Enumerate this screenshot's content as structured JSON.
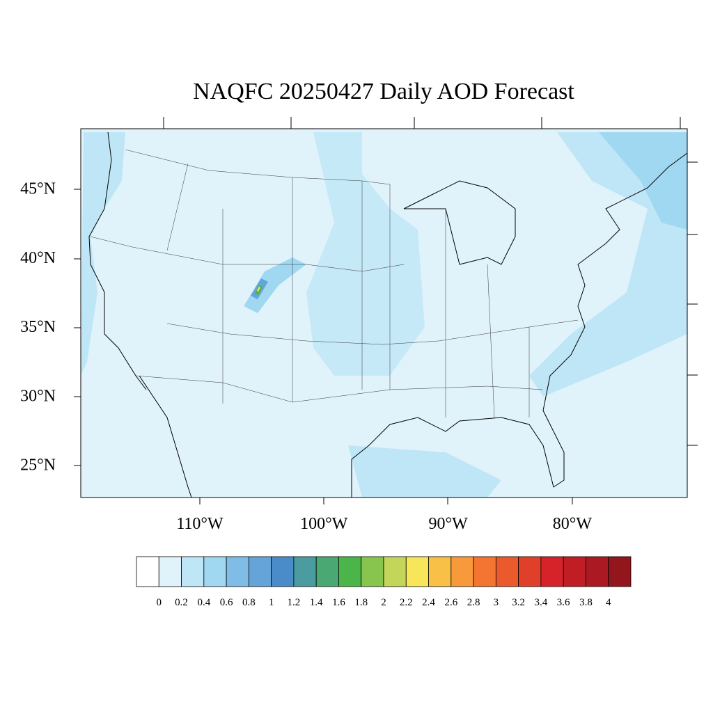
{
  "title": "NAQFC 20250427 Daily AOD Forecast",
  "map": {
    "lat_labels": [
      "45°N",
      "40°N",
      "35°N",
      "30°N",
      "25°N"
    ],
    "lon_labels": [
      "110°W",
      "100°W",
      "90°W",
      "80°W"
    ]
  },
  "colorbar": {
    "levels": [
      0,
      0.2,
      0.4,
      0.6,
      0.8,
      1,
      1.2,
      1.4,
      1.6,
      1.8,
      2,
      2.2,
      2.4,
      2.6,
      2.8,
      3,
      3.2,
      3.4,
      3.6,
      3.8,
      4
    ],
    "colors": [
      "#ffffff",
      "#e0f3fb",
      "#bfe6f7",
      "#a0d8f2",
      "#80bde6",
      "#64a4d9",
      "#4a8bc9",
      "#4a9ca0",
      "#4aa872",
      "#4cb54a",
      "#88c54e",
      "#c3d65a",
      "#f7e55a",
      "#f9c048",
      "#f89a3b",
      "#f47531",
      "#ea5a2c",
      "#e0402a",
      "#d52329",
      "#c11d25",
      "#ab1a22",
      "#93161c"
    ]
  }
}
